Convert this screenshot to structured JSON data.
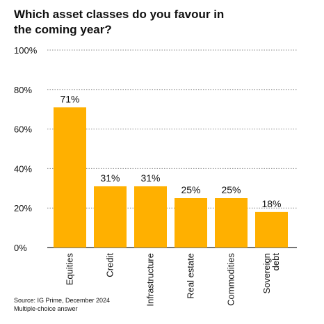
{
  "chart_data": {
    "type": "bar",
    "title": "Which asset classes do you favour in the coming year?",
    "categories": [
      "Equities",
      "Credit",
      "Infrastructure",
      "Real estate",
      "Commodities",
      "Sovereign debt"
    ],
    "category_lines": [
      [
        "Equities"
      ],
      [
        "Credit"
      ],
      [
        "Infrastructure"
      ],
      [
        "Real estate"
      ],
      [
        "Commodities"
      ],
      [
        "Sovereign",
        "debt"
      ]
    ],
    "values": [
      71,
      31,
      31,
      25,
      25,
      18
    ],
    "data_labels": [
      "71%",
      "31%",
      "31%",
      "25%",
      "25%",
      "18%"
    ],
    "ylim": [
      0,
      100
    ],
    "yticks": [
      0,
      20,
      40,
      60,
      80,
      100
    ],
    "ytick_labels": [
      "0%",
      "20%",
      "40%",
      "60%",
      "80%",
      "100%"
    ],
    "xlabel": "",
    "ylabel": "",
    "grid": "dotted horizontal",
    "bar_color": "#FFB000"
  },
  "footer": {
    "source": "Source: IG Prime, December 2024",
    "note": "Multiple-choice answer"
  }
}
